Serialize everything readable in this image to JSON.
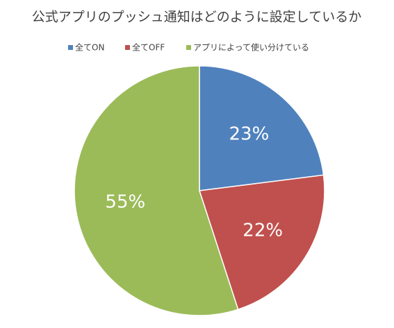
{
  "chart_data": {
    "type": "pie",
    "title": "公式アプリのプッシュ通知はどのように設定しているか",
    "categories": [
      "全てON",
      "全てOFF",
      "アプリによって使い分けている"
    ],
    "values": [
      23,
      22,
      55
    ],
    "value_labels": [
      "23%",
      "22%",
      "55%"
    ],
    "colors": [
      "#4f81bd",
      "#c0504d",
      "#9bbb59"
    ],
    "legend": "top"
  }
}
